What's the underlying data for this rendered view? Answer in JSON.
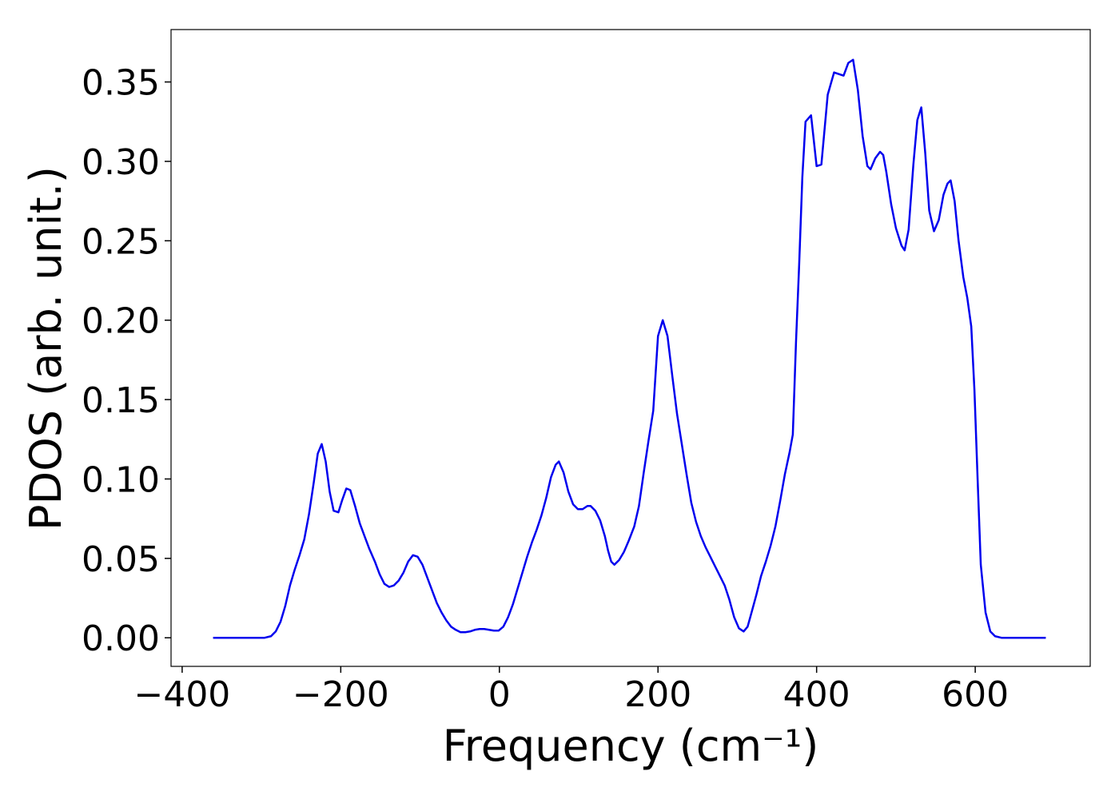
{
  "chart_data": {
    "type": "line",
    "xlabel": "Frequency (cm⁻¹)",
    "ylabel": "PDOS (arb. unit.)",
    "xlim": [
      -414,
      745
    ],
    "ylim": [
      -0.018,
      0.383
    ],
    "xticks": [
      {
        "value": -400,
        "label": "−400"
      },
      {
        "value": -200,
        "label": "−200"
      },
      0,
      200,
      400,
      600
    ],
    "yticks": [
      {
        "value": 0,
        "label": "0.00"
      },
      {
        "value": 0.05,
        "label": "0.05"
      },
      {
        "value": 0.1,
        "label": "0.10"
      },
      {
        "value": 0.15,
        "label": "0.15"
      },
      {
        "value": 0.2,
        "label": "0.20"
      },
      {
        "value": 0.25,
        "label": "0.25"
      },
      {
        "value": 0.3,
        "label": "0.30"
      },
      {
        "value": 0.35,
        "label": "0.35"
      }
    ],
    "grid": false,
    "series": [
      {
        "color": "#0000ee",
        "x": [
          -361,
          -296,
          -288,
          -282,
          -276,
          -270,
          -264,
          -258,
          -252,
          -246,
          -240,
          -234,
          -229,
          -224,
          -219,
          -214,
          -209,
          -203,
          -198,
          -193,
          -188,
          -182,
          -176,
          -170,
          -164,
          -157,
          -151,
          -145,
          -139,
          -133,
          -127,
          -121,
          -115,
          -109,
          -103,
          -97,
          -91,
          -85,
          -79,
          -73,
          -67,
          -61,
          -55,
          -49,
          -43,
          -37,
          -31,
          -25,
          -19,
          -13,
          -7,
          -1,
          5,
          11,
          17,
          23,
          29,
          35,
          41,
          47,
          53,
          59,
          65,
          71,
          75,
          81,
          87,
          93,
          99,
          105,
          111,
          115,
          121,
          127,
          133,
          137,
          141,
          145,
          151,
          157,
          163,
          170,
          176,
          182,
          188,
          194,
          200,
          206,
          212,
          218,
          224,
          230,
          236,
          242,
          248,
          254,
          260,
          266,
          272,
          278,
          284,
          290,
          296,
          302,
          308,
          313,
          318,
          324,
          330,
          336,
          342,
          348,
          354,
          360,
          366,
          370,
          374,
          378,
          382,
          386,
          393,
          400,
          406,
          414,
          422,
          428,
          434,
          440,
          446,
          452,
          458,
          464,
          468,
          474,
          480,
          484,
          488,
          494,
          500,
          507,
          511,
          516,
          522,
          527,
          532,
          537,
          542,
          548,
          554,
          560,
          565,
          569,
          574,
          579,
          585,
          590,
          595,
          599,
          603,
          607,
          613,
          619,
          625,
          633,
          689
        ],
        "values": [
          0,
          0,
          0.001,
          0.004,
          0.01,
          0.02,
          0.033,
          0.043,
          0.052,
          0.062,
          0.078,
          0.098,
          0.116,
          0.122,
          0.111,
          0.092,
          0.08,
          0.079,
          0.087,
          0.094,
          0.093,
          0.083,
          0.072,
          0.064,
          0.056,
          0.048,
          0.04,
          0.034,
          0.032,
          0.033,
          0.036,
          0.041,
          0.048,
          0.052,
          0.051,
          0.046,
          0.038,
          0.03,
          0.022,
          0.016,
          0.011,
          0.007,
          0.005,
          0.0035,
          0.0035,
          0.004,
          0.005,
          0.0055,
          0.0055,
          0.005,
          0.0045,
          0.0045,
          0.007,
          0.013,
          0.021,
          0.031,
          0.041,
          0.051,
          0.06,
          0.068,
          0.077,
          0.088,
          0.101,
          0.109,
          0.111,
          0.104,
          0.092,
          0.084,
          0.081,
          0.081,
          0.083,
          0.083,
          0.08,
          0.074,
          0.064,
          0.055,
          0.048,
          0.046,
          0.049,
          0.054,
          0.061,
          0.07,
          0.083,
          0.104,
          0.124,
          0.143,
          0.19,
          0.2,
          0.19,
          0.165,
          0.141,
          0.122,
          0.103,
          0.085,
          0.073,
          0.064,
          0.057,
          0.051,
          0.045,
          0.039,
          0.033,
          0.024,
          0.013,
          0.006,
          0.004,
          0.007,
          0.016,
          0.027,
          0.039,
          0.048,
          0.058,
          0.07,
          0.086,
          0.103,
          0.117,
          0.128,
          0.186,
          0.235,
          0.29,
          0.325,
          0.329,
          0.297,
          0.298,
          0.342,
          0.356,
          0.355,
          0.354,
          0.362,
          0.364,
          0.345,
          0.316,
          0.297,
          0.295,
          0.302,
          0.306,
          0.304,
          0.293,
          0.273,
          0.258,
          0.247,
          0.244,
          0.257,
          0.298,
          0.326,
          0.334,
          0.305,
          0.269,
          0.256,
          0.263,
          0.279,
          0.286,
          0.288,
          0.275,
          0.25,
          0.227,
          0.214,
          0.196,
          0.156,
          0.1,
          0.046,
          0.016,
          0.004,
          0.001,
          0,
          0
        ]
      }
    ]
  }
}
